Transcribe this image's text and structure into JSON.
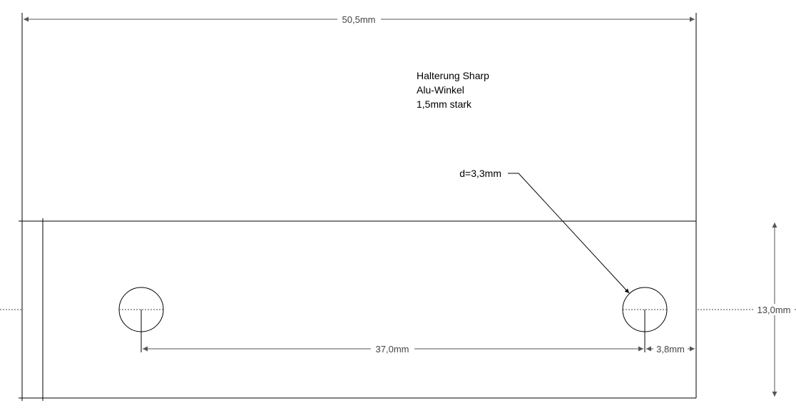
{
  "notes": {
    "line1": "Halterung Sharp",
    "line2": "Alu-Winkel",
    "line3": "1,5mm stark"
  },
  "dimensions": {
    "overall_width": "50,5mm",
    "hole_spacing": "37,0mm",
    "edge_offset": "3,8mm",
    "height": "13,0mm",
    "hole_diameter": "d=3,3mm"
  },
  "colors": {
    "line": "#000000",
    "dimension_line": "#555555",
    "text": "#000000"
  }
}
